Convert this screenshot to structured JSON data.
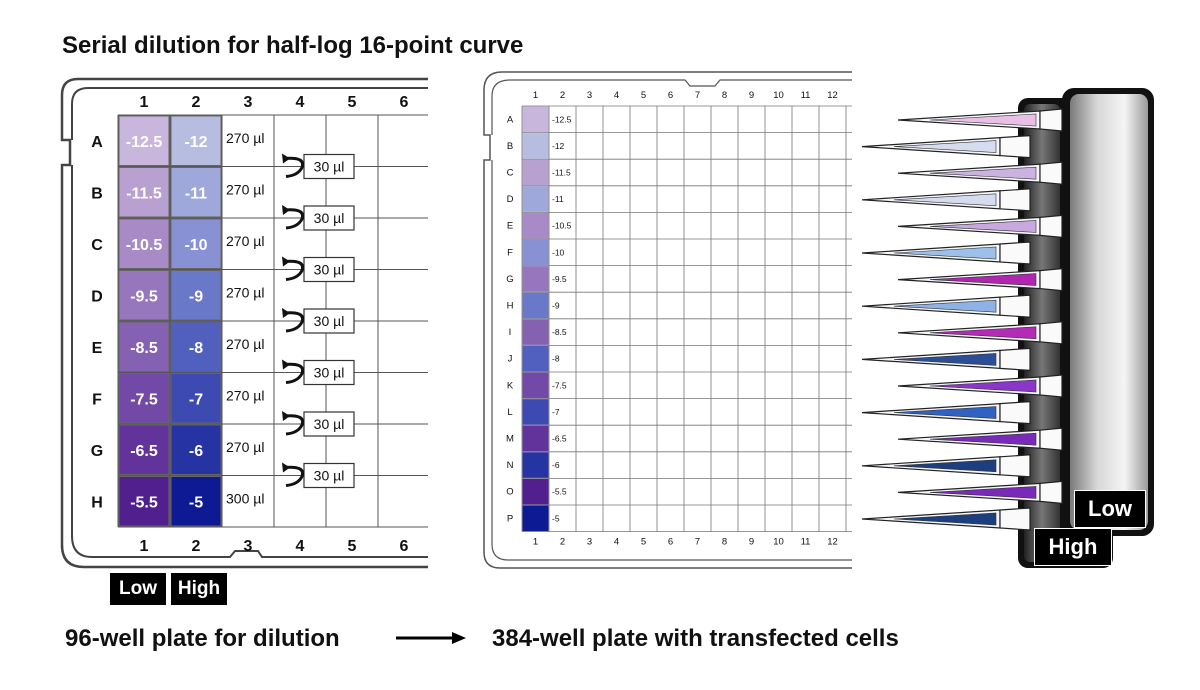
{
  "title": "Serial dilution for half-log 16-point curve",
  "plate96": {
    "col_labels": [
      "1",
      "2",
      "3",
      "4",
      "5",
      "6"
    ],
    "row_labels": [
      "A",
      "B",
      "C",
      "D",
      "E",
      "F",
      "G",
      "H"
    ],
    "col1_values": [
      "-12.5",
      "-11.5",
      "-10.5",
      "-9.5",
      "-8.5",
      "-7.5",
      "-6.5",
      "-5.5"
    ],
    "col2_values": [
      "-12",
      "-11",
      "-10",
      "-9",
      "-8",
      "-7",
      "-6",
      "-5"
    ],
    "col3_volumes": [
      "270 µl",
      "270 µl",
      "270 µl",
      "270 µl",
      "270 µl",
      "270 µl",
      "270 µl",
      "300 µl"
    ],
    "transfer_label": "30 µl",
    "col1_colors": [
      "#c8b6dc",
      "#b8a0d0",
      "#a78ac6",
      "#9677bd",
      "#8561b1",
      "#7349a7",
      "#62339a",
      "#51208e"
    ],
    "col2_colors": [
      "#b7bde1",
      "#9ea8da",
      "#8791d3",
      "#6a78c9",
      "#515fbe",
      "#3c4ab1",
      "#2634a3",
      "#0d1a93"
    ],
    "low_label": "Low",
    "high_label": "High"
  },
  "plate384": {
    "col_labels": [
      "1",
      "2",
      "3",
      "4",
      "5",
      "6",
      "7",
      "8",
      "9",
      "10",
      "11",
      "12"
    ],
    "row_labels": [
      "A",
      "B",
      "C",
      "D",
      "E",
      "F",
      "G",
      "H",
      "I",
      "J",
      "K",
      "L",
      "M",
      "N",
      "O",
      "P"
    ],
    "values": [
      "-12.5",
      "-12",
      "-11.5",
      "-11",
      "-10.5",
      "-10",
      "-9.5",
      "-9",
      "-8.5",
      "-8",
      "-7.5",
      "-7",
      "-6.5",
      "-6",
      "-5.5",
      "-5"
    ],
    "colors": [
      "#c8b6dc",
      "#b7bde1",
      "#b8a0d0",
      "#9ea8da",
      "#a78ac6",
      "#8791d3",
      "#9677bd",
      "#6a78c9",
      "#8561b1",
      "#515fbe",
      "#7349a7",
      "#3c4ab1",
      "#62339a",
      "#2634a3",
      "#51208e",
      "#0d1a93"
    ]
  },
  "tips": {
    "colors": [
      "#e9bfe6",
      "#d6dcef",
      "#ccb2e0",
      "#d6dcef",
      "#c8a8de",
      "#9cc0ea",
      "#b026b0",
      "#8fb2e6",
      "#b52ab6",
      "#2c4e96",
      "#8a36c8",
      "#2f62c2",
      "#7a2ab8",
      "#1d3f80",
      "#7a2ab8",
      "#1d3f80"
    ],
    "low_label": "Low",
    "high_label": "High"
  },
  "captions": {
    "left": "96-well plate for dilution",
    "right": "384-well plate with transfected cells"
  }
}
